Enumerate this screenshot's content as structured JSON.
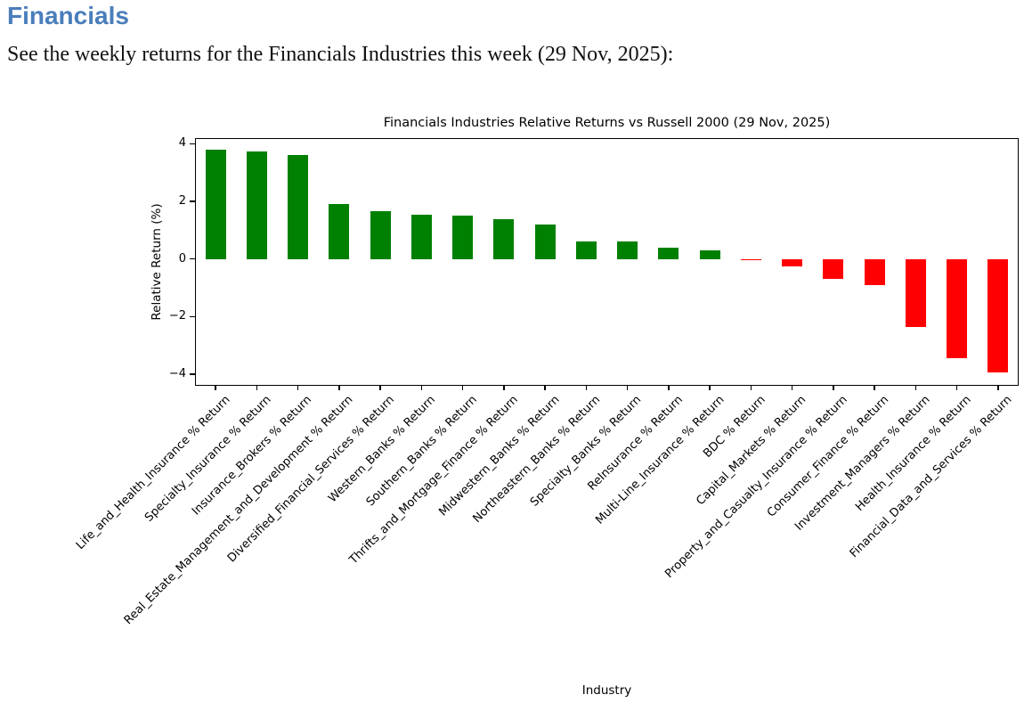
{
  "page": {
    "heading": "Financials",
    "subtitle": "See the weekly returns for the Financials Industries this week (29 Nov, 2025):",
    "heading_color": "#4A7EBB"
  },
  "chart_data": {
    "type": "bar",
    "title": "Financials Industries Relative Returns vs Russell 2000 (29 Nov, 2025)",
    "xlabel": "Industry",
    "ylabel": "Relative Return (%)",
    "ylim": [
      -4.4,
      4.2
    ],
    "yticks": [
      -4,
      -2,
      0,
      2,
      4
    ],
    "grid": false,
    "legend": "none",
    "positive_color": "#008000",
    "negative_color": "#FF0000",
    "categories": [
      "Life_and_Health_Insurance % Return",
      "Specialty_Insurance % Return",
      "Insurance_Brokers % Return",
      "Real_Estate_Management_and_Development % Return",
      "Diversified_Financial_Services % Return",
      "Western_Banks % Return",
      "Southern_Banks % Return",
      "Thrifts_and_Mortgage_Finance % Return",
      "Midwestern_Banks % Return",
      "Northeastern_Banks % Return",
      "Specialty_Banks % Return",
      "ReInsurance % Return",
      "Multi-Line_Insurance % Return",
      "BDC % Return",
      "Capital_Markets % Return",
      "Property_and_Casualty_Insurance % Return",
      "Consumer_Finance % Return",
      "Investment_Managers % Return",
      "Health_Insurance % Return",
      "Financial_Data_and_Services % Return"
    ],
    "values": [
      3.8,
      3.75,
      3.6,
      1.9,
      1.65,
      1.55,
      1.5,
      1.4,
      1.2,
      0.62,
      0.6,
      0.38,
      0.3,
      -0.05,
      -0.25,
      -0.7,
      -0.9,
      -2.35,
      -3.45,
      -3.95
    ]
  }
}
